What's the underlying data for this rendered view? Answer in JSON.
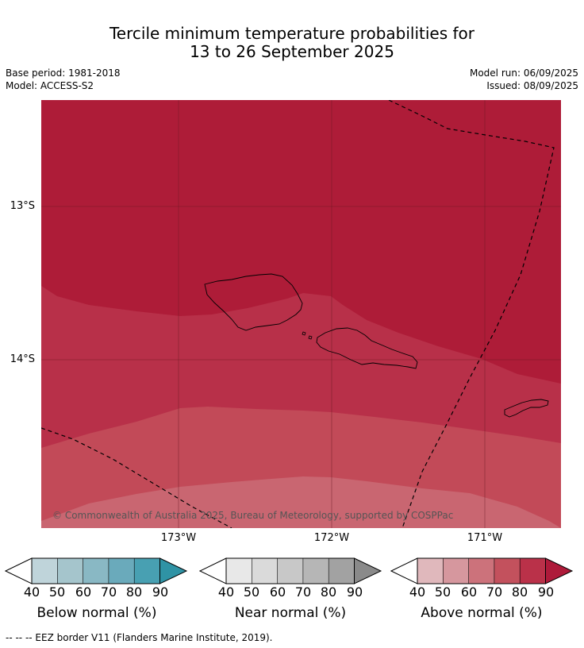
{
  "title_line1": "Tercile minimum temperature probabilities for",
  "title_line2": "13 to 26 September 2025",
  "base_period": "Base period: 1981-2018",
  "model": "Model: ACCESS-S2",
  "model_run": "Model run: 06/09/2025",
  "issued": "Issued: 08/09/2025",
  "lat_labels": [
    "13°S",
    "14°S"
  ],
  "lon_labels": [
    "173°W",
    "172°W",
    "171°W"
  ],
  "credit": "© Commonwealth of Australia 2025, Bureau of Meteorology, supported by COSPPac",
  "footer": "--  --  -- EEZ border V11 (Flanders Marine Institute, 2019).",
  "colorbars": [
    {
      "label": "Below normal (%)",
      "ticks": [
        "40",
        "50",
        "60",
        "70",
        "80",
        "90"
      ],
      "colors": [
        "#bfd4da",
        "#a5c5cc",
        "#89b8c4",
        "#6aaabb",
        "#48a0b2",
        "#2f93a5"
      ]
    },
    {
      "label": "Near normal (%)",
      "ticks": [
        "40",
        "50",
        "60",
        "70",
        "80",
        "90"
      ],
      "colors": [
        "#e8e8e8",
        "#dadada",
        "#c8c8c8",
        "#b6b6b6",
        "#a2a2a2",
        "#8a8a8a"
      ]
    },
    {
      "label": "Above normal (%)",
      "ticks": [
        "40",
        "50",
        "60",
        "70",
        "80",
        "90"
      ],
      "colors": [
        "#e0b8bc",
        "#d6979e",
        "#cc727b",
        "#c3515d",
        "#ba3149",
        "#ae1a3a"
      ]
    }
  ],
  "map_colors": {
    "c90": "#ae1c38",
    "c80": "#b83049",
    "c70": "#c24a58",
    "c60": "#c96671"
  }
}
